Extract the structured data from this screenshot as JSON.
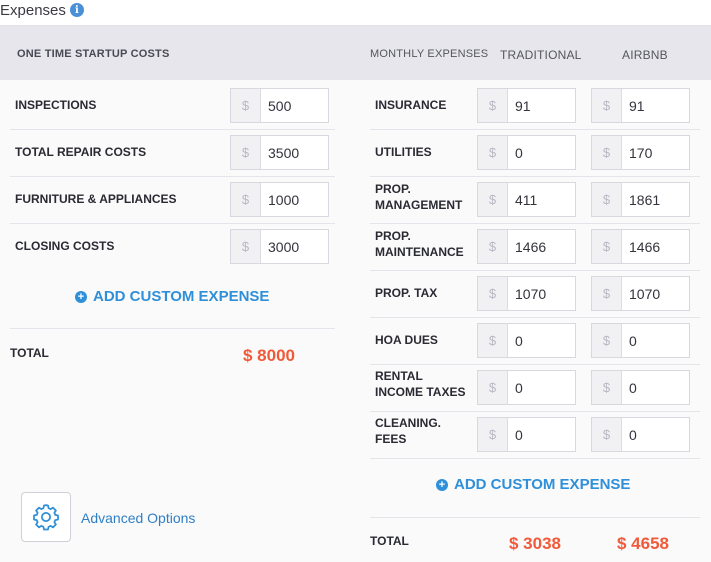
{
  "section": {
    "title": "Expenses",
    "info_icon": "info-icon"
  },
  "startup": {
    "header": "ONE TIME STARTUP COSTS",
    "rows": [
      {
        "label": "INSPECTIONS",
        "value": "500"
      },
      {
        "label": "TOTAL REPAIR COSTS",
        "value": "3500"
      },
      {
        "label": "FURNITURE & APPLIANCES",
        "value": "1000"
      },
      {
        "label": "CLOSING COSTS",
        "value": "3000"
      }
    ],
    "add_label": "ADD CUSTOM EXPENSE",
    "total_label": "TOTAL",
    "total_value": "$ 8000"
  },
  "monthly": {
    "header": "MONTHLY EXPENSES",
    "col_traditional": "TRADITIONAL",
    "col_airbnb": "AIRBNB",
    "rows": [
      {
        "label_1": "INSURANCE",
        "label_2": "",
        "traditional": "91",
        "airbnb": "91"
      },
      {
        "label_1": "UTILITIES",
        "label_2": "",
        "traditional": "0",
        "airbnb": "170"
      },
      {
        "label_1": "PROP.",
        "label_2": "MANAGEMENT",
        "traditional": "411",
        "airbnb": "1861"
      },
      {
        "label_1": "PROP.",
        "label_2": "MAINTENANCE",
        "traditional": "1466",
        "airbnb": "1466"
      },
      {
        "label_1": "PROP. TAX",
        "label_2": "",
        "traditional": "1070",
        "airbnb": "1070"
      },
      {
        "label_1": "HOA DUES",
        "label_2": "",
        "traditional": "0",
        "airbnb": "0"
      },
      {
        "label_1": "RENTAL",
        "label_2": "INCOME TAXES",
        "traditional": "0",
        "airbnb": "0"
      },
      {
        "label_1": "CLEANING.",
        "label_2": "FEES",
        "traditional": "0",
        "airbnb": "0"
      }
    ],
    "add_label": "ADD CUSTOM EXPENSE",
    "total_label": "TOTAL",
    "total_traditional": "$ 3038",
    "total_airbnb": "$ 4658"
  },
  "currency_symbol": "$",
  "advanced": {
    "label": "Advanced Options",
    "icon": "gear-icon"
  },
  "colors": {
    "accent": "#2f8fd8",
    "total": "#f05a3a",
    "header_bg": "#e6e6ec"
  }
}
